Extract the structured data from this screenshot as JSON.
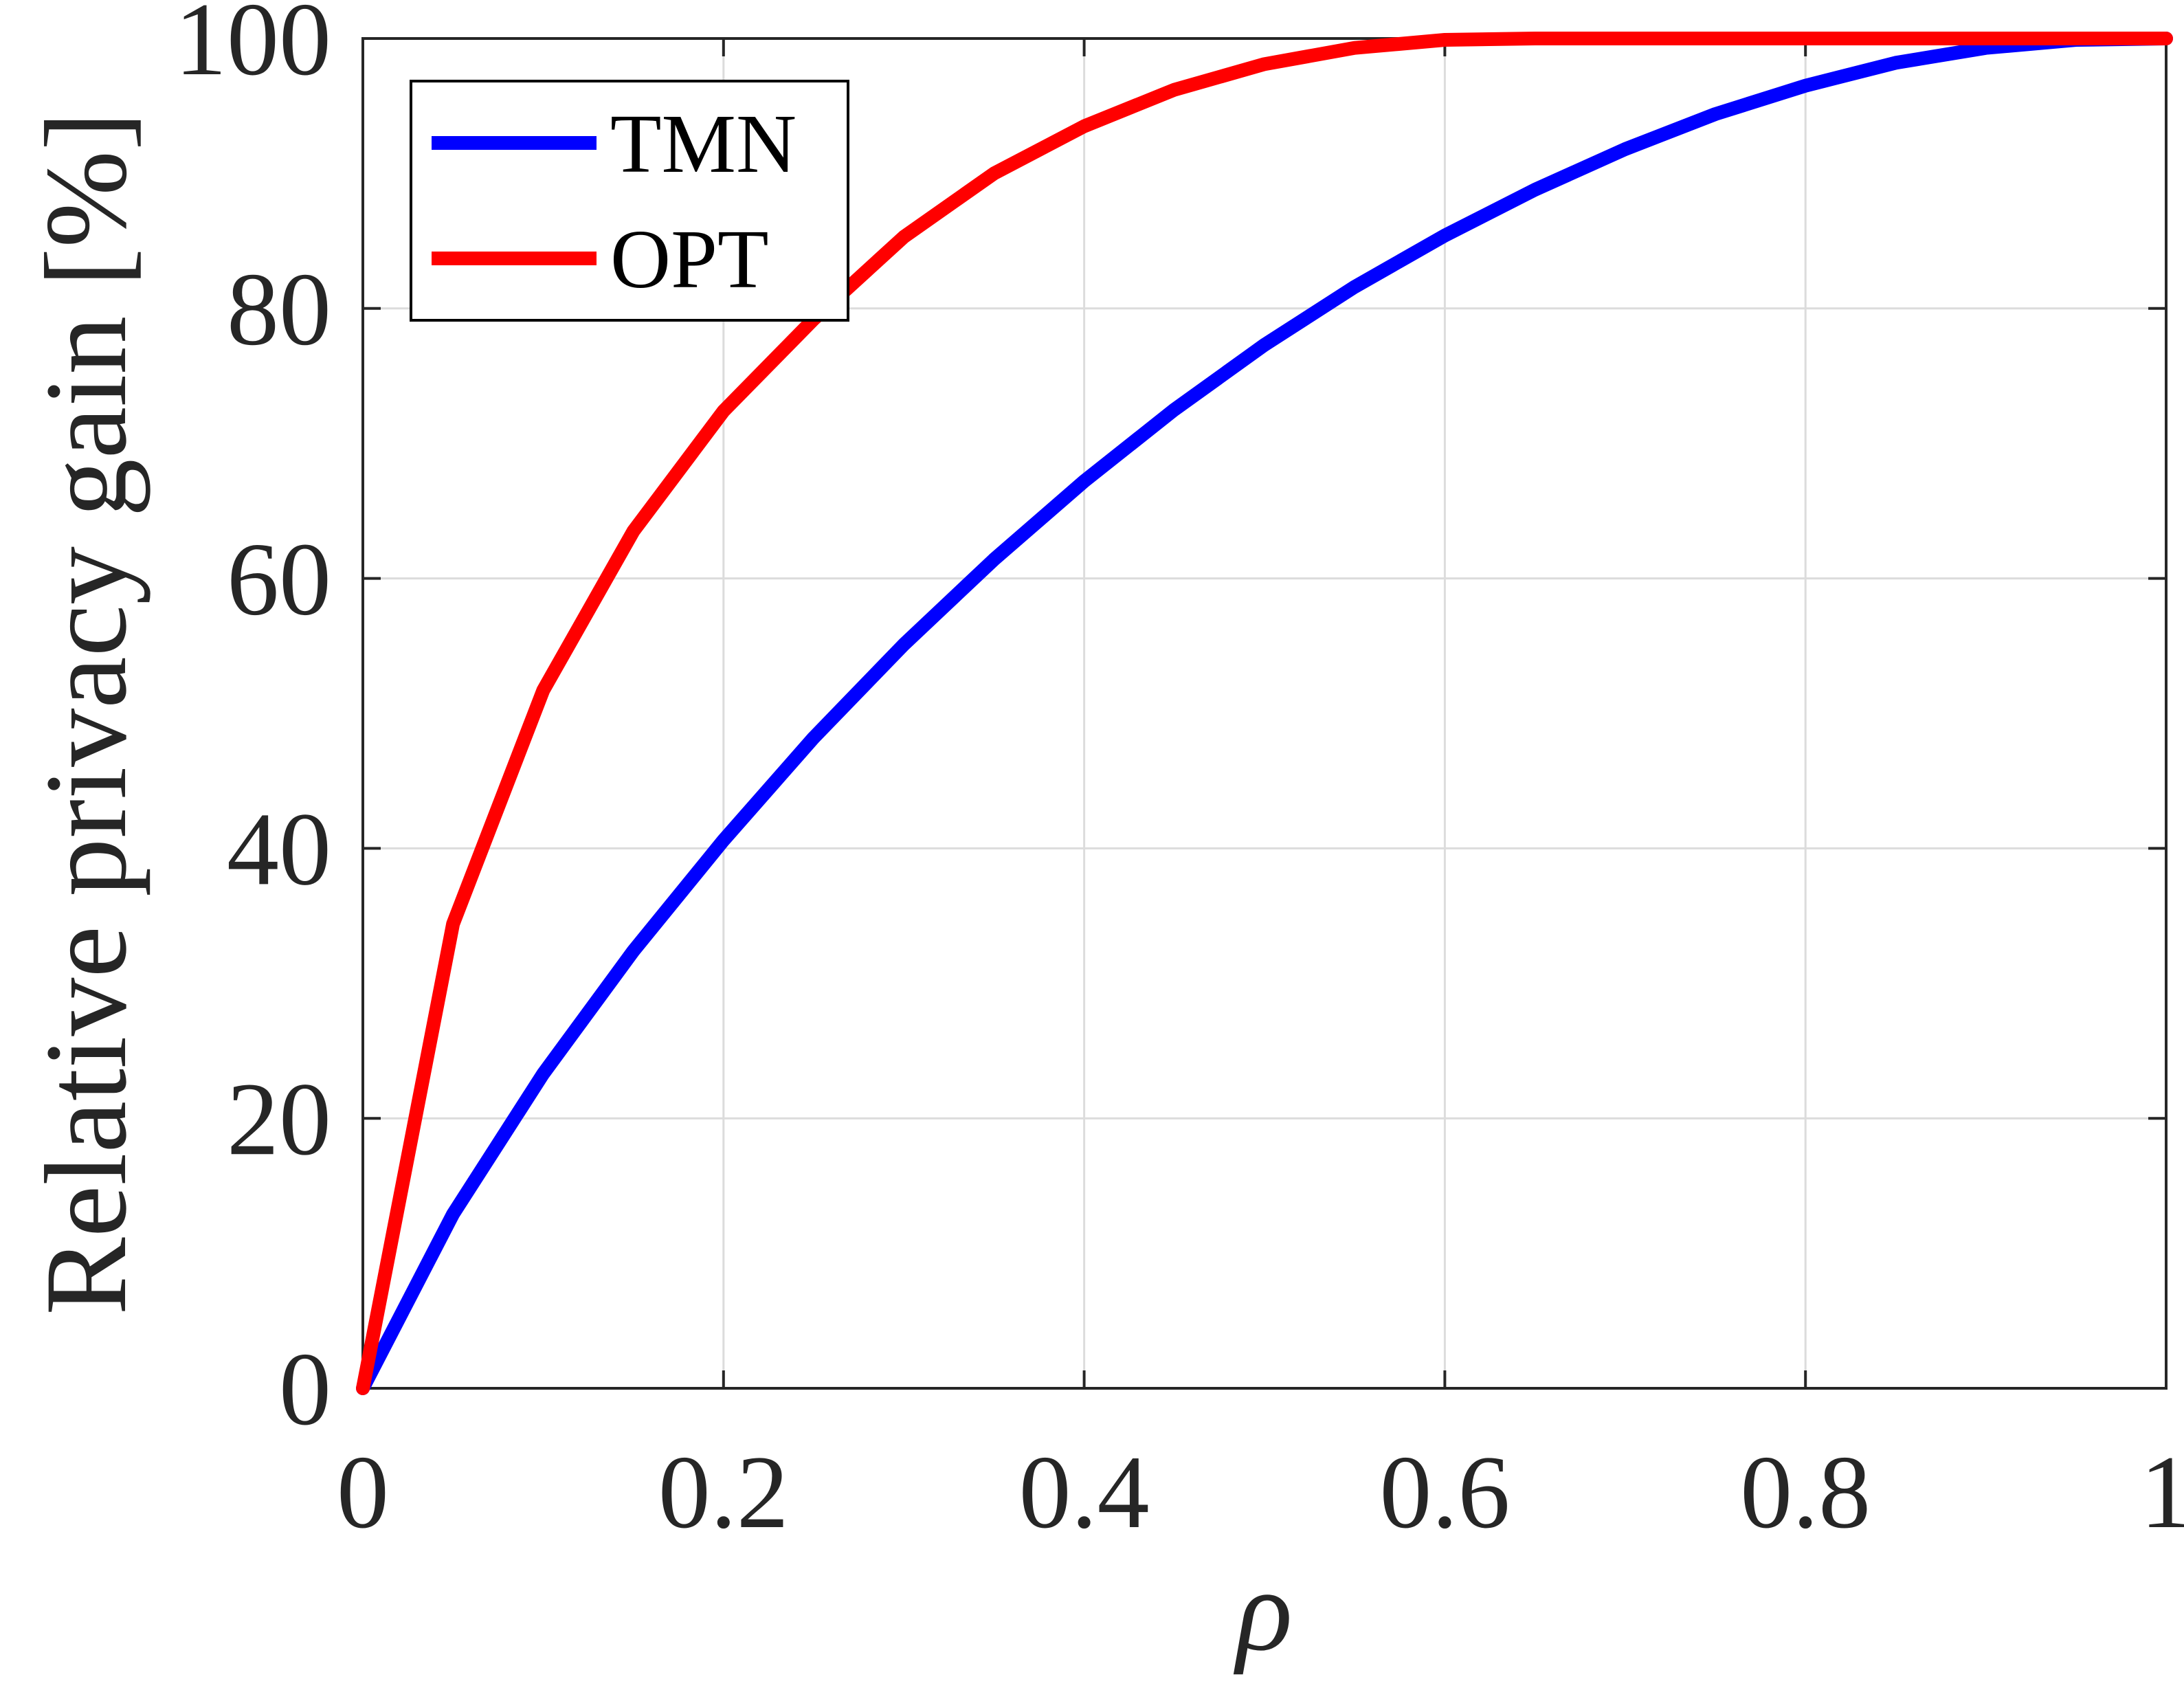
{
  "chart_data": {
    "type": "line",
    "title": "",
    "xlabel": "ρ",
    "ylabel": "Relative privacy gain [%]",
    "xlim": [
      0,
      1
    ],
    "ylim": [
      0,
      100
    ],
    "xticks": [
      0,
      0.2,
      0.4,
      0.6,
      0.8,
      1
    ],
    "xtick_labels": [
      "0",
      "0.2",
      "0.4",
      "0.6",
      "0.8",
      "1"
    ],
    "yticks": [
      0,
      20,
      40,
      60,
      80,
      100
    ],
    "ytick_labels": [
      "0",
      "20",
      "40",
      "60",
      "80",
      "100"
    ],
    "grid": true,
    "legend_position": "top-left",
    "x": [
      0,
      0.05,
      0.1,
      0.15,
      0.2,
      0.25,
      0.3,
      0.35,
      0.4,
      0.45,
      0.5,
      0.55,
      0.6,
      0.65,
      0.7,
      0.75,
      0.8,
      0.85,
      0.9,
      0.95,
      1.0
    ],
    "series": [
      {
        "name": "TMN",
        "color": "#0000ff",
        "values": [
          0,
          12.9,
          23.3,
          32.4,
          40.6,
          48.2,
          55.1,
          61.4,
          67.2,
          72.5,
          77.3,
          81.6,
          85.4,
          88.8,
          91.8,
          94.4,
          96.5,
          98.2,
          99.3,
          99.9,
          100
        ]
      },
      {
        "name": "OPT",
        "color": "#ff0000",
        "values": [
          0,
          34.4,
          51.7,
          63.5,
          72.4,
          79.2,
          85.3,
          90.0,
          93.5,
          96.2,
          98.1,
          99.3,
          99.9,
          100,
          100,
          100,
          100,
          100,
          100,
          100,
          100
        ]
      }
    ]
  }
}
